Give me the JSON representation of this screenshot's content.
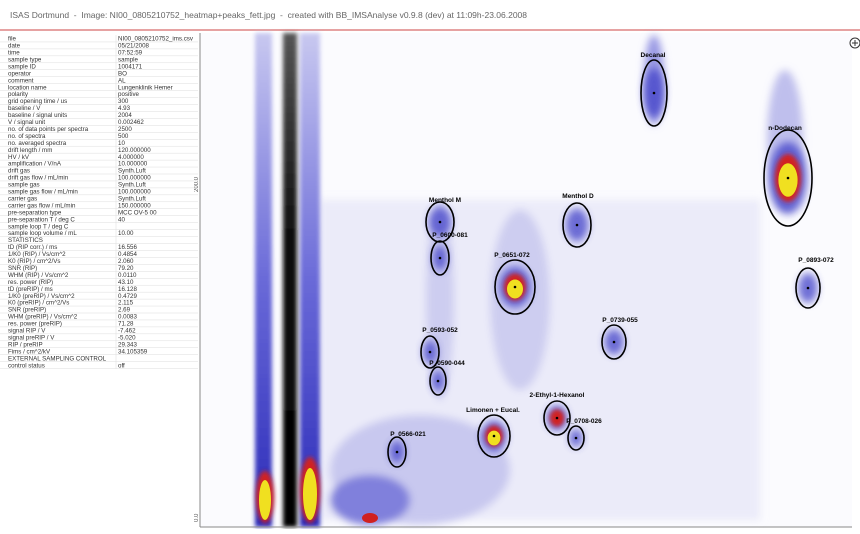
{
  "header": {
    "title": "ISAS Dortmund  -  Image: NI00_0805210752_heatmap+peaks_fett.jpg  -  created with BB_IMSAnalyse v0.9.8 (dev) at 11:09h-23.06.2008"
  },
  "table": {
    "rows": [
      [
        "file",
        "NI00_0805210752_ims.csv"
      ],
      [
        "date",
        "05/21/2008"
      ],
      [
        "time",
        "07:52:59"
      ],
      [
        "sample type",
        "sample"
      ],
      [
        "sample ID",
        "1004171"
      ],
      [
        "operator",
        "BO"
      ],
      [
        "comment",
        "AL"
      ],
      [
        "location name",
        "Lungenklinik Hemer"
      ],
      [
        "polarity",
        "positive"
      ],
      [
        "grid opening time / us",
        "300"
      ],
      [
        "baseline / V",
        "4.93"
      ],
      [
        "baseline / signal units",
        "2004"
      ],
      [
        "V / signal unit",
        "0.002462"
      ],
      [
        "no. of data points per spectra",
        "2500"
      ],
      [
        "no. of spectra",
        "500"
      ],
      [
        "no. averaged spectra",
        "10"
      ],
      [
        "drift length / mm",
        "120.000000"
      ],
      [
        "HV / kV",
        "4.000000"
      ],
      [
        "amplification / V/nA",
        "10.000000"
      ],
      [
        "drift gas",
        "Synth.Luft"
      ],
      [
        "drift gas flow / mL/min",
        "100.000000"
      ],
      [
        "sample gas",
        "Synth.Luft"
      ],
      [
        "sample gas flow / mL/min",
        "100.000000"
      ],
      [
        "carrier gas",
        "Synth.Luft"
      ],
      [
        "carrier gas flow / mL/min",
        "150.000000"
      ],
      [
        "pre-separation type",
        "MCC OV-5 00"
      ],
      [
        "pre-separation T / deg C",
        "40"
      ],
      [
        "sample loop T / deg C"
      ],
      [
        "sample loop volume / mL",
        "10.00"
      ],
      [
        "STATISTICS"
      ],
      [
        "tD (RIP corr.) / ms",
        "16.556"
      ],
      [
        "1/K0 (RIP) / Vs/cm^2",
        "0.4854"
      ],
      [
        "K0 (RIP) / cm^2/Vs",
        "2.060"
      ],
      [
        "SNR (RIP)",
        "79.20"
      ],
      [
        "WHM (RIP) / Vs/cm^2",
        "0.0110"
      ],
      [
        "res. power (RIP)",
        "43.10"
      ],
      [
        "tD (preRIP) / ms",
        "16.128"
      ],
      [
        "1/K0 (preRIP) / Vs/cm^2",
        "0.4729"
      ],
      [
        "K0 (preRIP) / cm^2/Vs",
        "2.115"
      ],
      [
        "SNR (preRIP)",
        "2.69"
      ],
      [
        "WHM (preRIP) / Vs/cm^2",
        "0.0083"
      ],
      [
        "res. power (preRIP)",
        "71.28"
      ],
      [
        "signal RIP / V",
        "-7.462"
      ],
      [
        "signal preRIP / V",
        "-5.020"
      ],
      [
        "RIP / preRIP",
        "29.343"
      ],
      [
        "Fims / cm^2/kV",
        "34.105359"
      ],
      [
        "EXTERNAL SAMPLING CONTROL"
      ],
      [
        "control status",
        "off"
      ]
    ]
  },
  "axis": {
    "labels": [
      "200.0",
      "0.0"
    ]
  },
  "peaks": [
    {
      "label": "Decanal"
    },
    {
      "label": "n-Dodecan"
    },
    {
      "label": "Menthol M"
    },
    {
      "label": "Menthol D"
    },
    {
      "label": "P_0600-081"
    },
    {
      "label": "P_0651-072"
    },
    {
      "label": "P_0893-072"
    },
    {
      "label": "P_0593-052"
    },
    {
      "label": "P_0739-055"
    },
    {
      "label": "P_0590-044"
    },
    {
      "label": "Limonen + Eucal."
    },
    {
      "label": "2-Ethyl-1-Hexanol"
    },
    {
      "label": "P_0708-026"
    },
    {
      "label": "P_0566-021"
    }
  ]
}
